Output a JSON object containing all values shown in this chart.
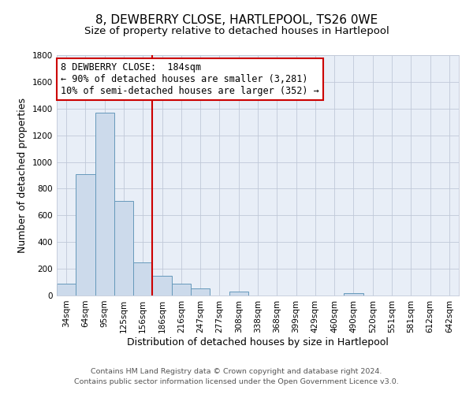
{
  "title": "8, DEWBERRY CLOSE, HARTLEPOOL, TS26 0WE",
  "subtitle": "Size of property relative to detached houses in Hartlepool",
  "xlabel": "Distribution of detached houses by size in Hartlepool",
  "ylabel": "Number of detached properties",
  "bin_labels": [
    "34sqm",
    "64sqm",
    "95sqm",
    "125sqm",
    "156sqm",
    "186sqm",
    "216sqm",
    "247sqm",
    "277sqm",
    "308sqm",
    "338sqm",
    "368sqm",
    "399sqm",
    "429sqm",
    "460sqm",
    "490sqm",
    "520sqm",
    "551sqm",
    "581sqm",
    "612sqm",
    "642sqm"
  ],
  "bar_values": [
    90,
    910,
    1370,
    710,
    250,
    145,
    90,
    55,
    0,
    28,
    0,
    0,
    0,
    0,
    0,
    18,
    0,
    0,
    0,
    0,
    0
  ],
  "bar_color": "#ccdaeb",
  "bar_edge_color": "#6699bb",
  "vline_idx": 5,
  "vline_color": "#cc0000",
  "ylim": [
    0,
    1800
  ],
  "yticks": [
    0,
    200,
    400,
    600,
    800,
    1000,
    1200,
    1400,
    1600,
    1800
  ],
  "annotation_line1": "8 DEWBERRY CLOSE:  184sqm",
  "annotation_line2": "← 90% of detached houses are smaller (3,281)",
  "annotation_line3": "10% of semi-detached houses are larger (352) →",
  "annotation_box_color": "#ffffff",
  "annotation_box_edge": "#cc0000",
  "footer_line1": "Contains HM Land Registry data © Crown copyright and database right 2024.",
  "footer_line2": "Contains public sector information licensed under the Open Government Licence v3.0.",
  "background_color": "#ffffff",
  "plot_bg_color": "#e8eef7",
  "grid_color": "#c0c8d8",
  "title_fontsize": 11,
  "subtitle_fontsize": 9.5,
  "axis_label_fontsize": 9,
  "tick_fontsize": 7.5,
  "annotation_fontsize": 8.5,
  "footer_fontsize": 6.8
}
